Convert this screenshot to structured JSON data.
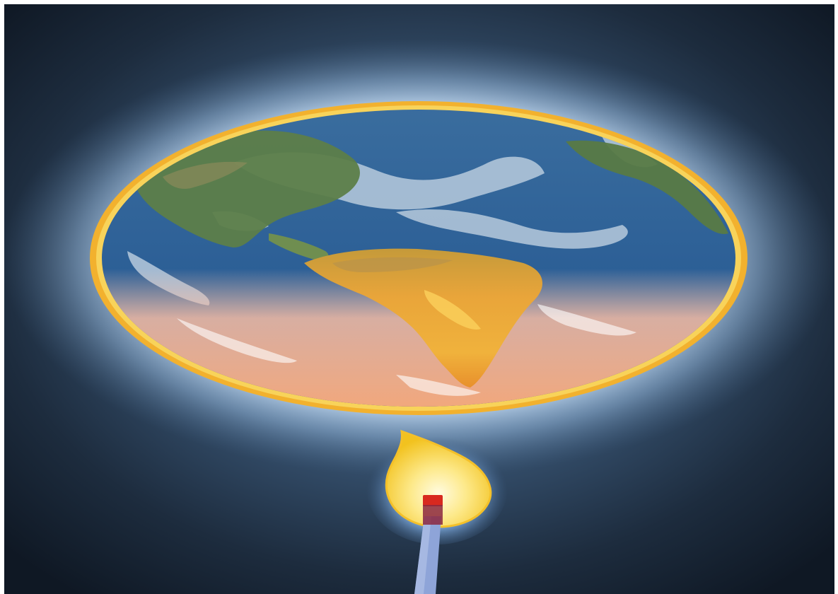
{
  "scene": {
    "subject": "earth-heated-by-match",
    "elements": [
      "globe",
      "halo",
      "match-flame",
      "matchstick"
    ],
    "colors": {
      "frame": "#ffffff",
      "background_dark": "#0f1824",
      "background_light": "#4b6a8c",
      "halo": "#a6c3e0",
      "rim": "#f2b12e",
      "ocean": "#2c5f96",
      "cloud": "#c9d8e6",
      "land_north": "#5d7e49",
      "land_south": "#e39a30",
      "warm_atmosphere": "#f6bca4",
      "flame_outer": "#f7d23d",
      "flame_inner": "#fff6c4",
      "flame_glow": "#6c9bd0",
      "match_head": "#d8291f",
      "match_stick": "#8ea4d8"
    }
  }
}
